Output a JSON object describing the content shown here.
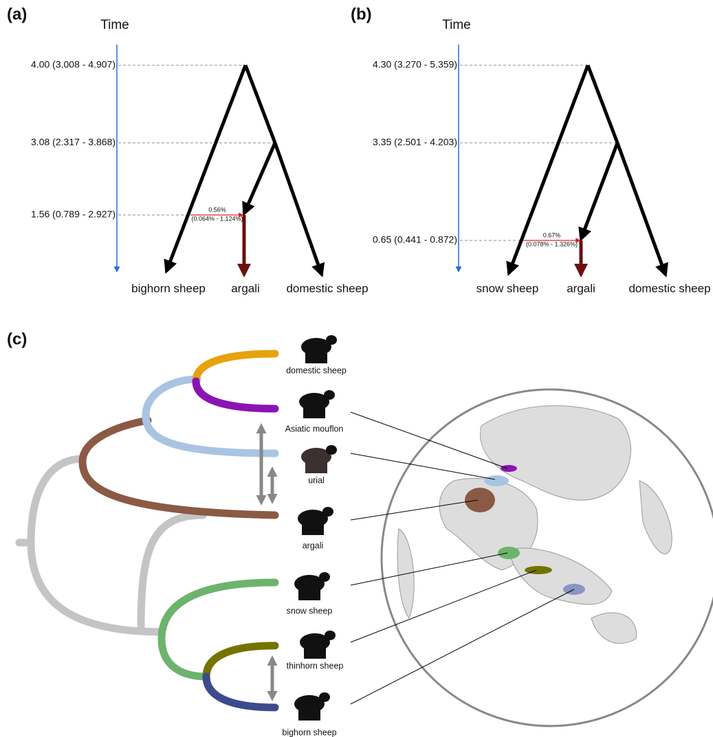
{
  "panels": {
    "a": {
      "label": "(a)",
      "time_label": "Time",
      "node_times": [
        "4.00 (3.008 - 4.907)",
        "3.08 (2.317 - 3.868)",
        "1.56 (0.789 - 2.927)"
      ],
      "gene_flow": {
        "value": "0.56%",
        "interval": "(0.064% - 1.124%)"
      },
      "leaves": [
        "bighorn sheep",
        "argali",
        "domestic sheep"
      ]
    },
    "b": {
      "label": "(b)",
      "time_label": "Time",
      "node_times": [
        "4.30 (3.270 - 5.359)",
        "3.35 (2.501 - 4.203)",
        "0.65 (0.441 - 0.872)"
      ],
      "gene_flow": {
        "value": "0.67%",
        "interval": "(0.078% - 1.326%)"
      },
      "leaves": [
        "snow sheep",
        "argali",
        "domestic sheep"
      ]
    },
    "c": {
      "label": "(c)",
      "species": [
        "domestic sheep",
        "Asiatic mouflon",
        "urial",
        "argali",
        "snow sheep",
        "thinhorn sheep",
        "bighorn sheep"
      ]
    }
  }
}
